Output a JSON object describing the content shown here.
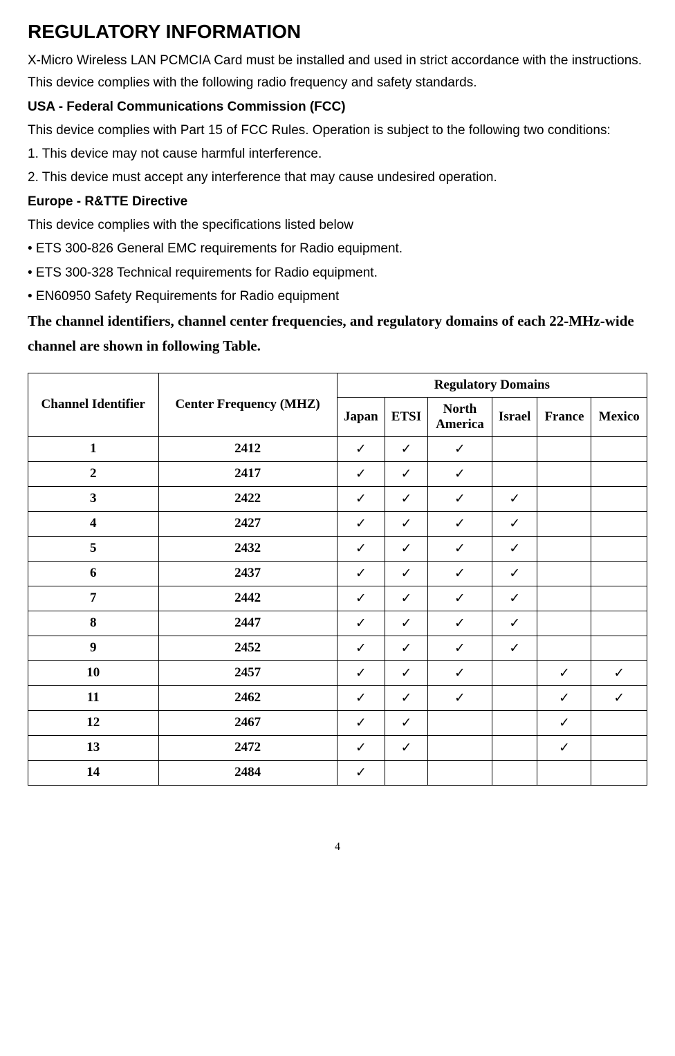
{
  "title": "REGULATORY INFORMATION",
  "intro": "X-Micro Wireless LAN PCMCIA Card must be installed and used in strict accordance with the instructions. This device complies with the following radio frequency and safety standards.",
  "usa_heading": "USA - Federal Communications Commission (FCC)",
  "usa_text": "This device complies with Part 15 of FCC Rules. Operation is subject to the following two conditions:",
  "usa_item1": "1. This device may not cause harmful interference.",
  "usa_item2": "2. This device must accept any interference that may cause undesired operation.",
  "europe_heading": "Europe - R&TTE Directive",
  "europe_text": "This device complies with the specifications listed below",
  "europe_item1": "• ETS 300-826 General EMC requirements for Radio equipment.",
  "europe_item2": "• ETS 300-328 Technical requirements for Radio equipment.",
  "europe_item3": "• EN60950 Safety Requirements for Radio equipment",
  "table_note": "The channel identifiers, channel center frequencies, and regulatory domains of each 22-MHz-wide channel are shown in following Table.",
  "table": {
    "col_channel": "Channel Identifier",
    "col_freq": "Center Frequency (MHZ)",
    "col_domains": "Regulatory Domains",
    "domains": [
      "Japan",
      "ETSI",
      "North America",
      "Israel",
      "France",
      "Mexico"
    ],
    "rows": [
      {
        "ch": "1",
        "freq": "2412",
        "d": [
          true,
          true,
          true,
          false,
          false,
          false
        ]
      },
      {
        "ch": "2",
        "freq": "2417",
        "d": [
          true,
          true,
          true,
          false,
          false,
          false
        ]
      },
      {
        "ch": "3",
        "freq": "2422",
        "d": [
          true,
          true,
          true,
          true,
          false,
          false
        ]
      },
      {
        "ch": "4",
        "freq": "2427",
        "d": [
          true,
          true,
          true,
          true,
          false,
          false
        ]
      },
      {
        "ch": "5",
        "freq": "2432",
        "d": [
          true,
          true,
          true,
          true,
          false,
          false
        ]
      },
      {
        "ch": "6",
        "freq": "2437",
        "d": [
          true,
          true,
          true,
          true,
          false,
          false
        ]
      },
      {
        "ch": "7",
        "freq": "2442",
        "d": [
          true,
          true,
          true,
          true,
          false,
          false
        ]
      },
      {
        "ch": "8",
        "freq": "2447",
        "d": [
          true,
          true,
          true,
          true,
          false,
          false
        ]
      },
      {
        "ch": "9",
        "freq": "2452",
        "d": [
          true,
          true,
          true,
          true,
          false,
          false
        ]
      },
      {
        "ch": "10",
        "freq": "2457",
        "d": [
          true,
          true,
          true,
          false,
          true,
          true
        ]
      },
      {
        "ch": "11",
        "freq": "2462",
        "d": [
          true,
          true,
          true,
          false,
          true,
          true
        ]
      },
      {
        "ch": "12",
        "freq": "2467",
        "d": [
          true,
          true,
          false,
          false,
          true,
          false
        ]
      },
      {
        "ch": "13",
        "freq": "2472",
        "d": [
          true,
          true,
          false,
          false,
          true,
          false
        ]
      },
      {
        "ch": "14",
        "freq": "2484",
        "d": [
          true,
          false,
          false,
          false,
          false,
          false
        ]
      }
    ]
  },
  "check_mark": "✓",
  "page_number": "4",
  "colors": {
    "text": "#000000",
    "background": "#ffffff",
    "border": "#000000"
  }
}
